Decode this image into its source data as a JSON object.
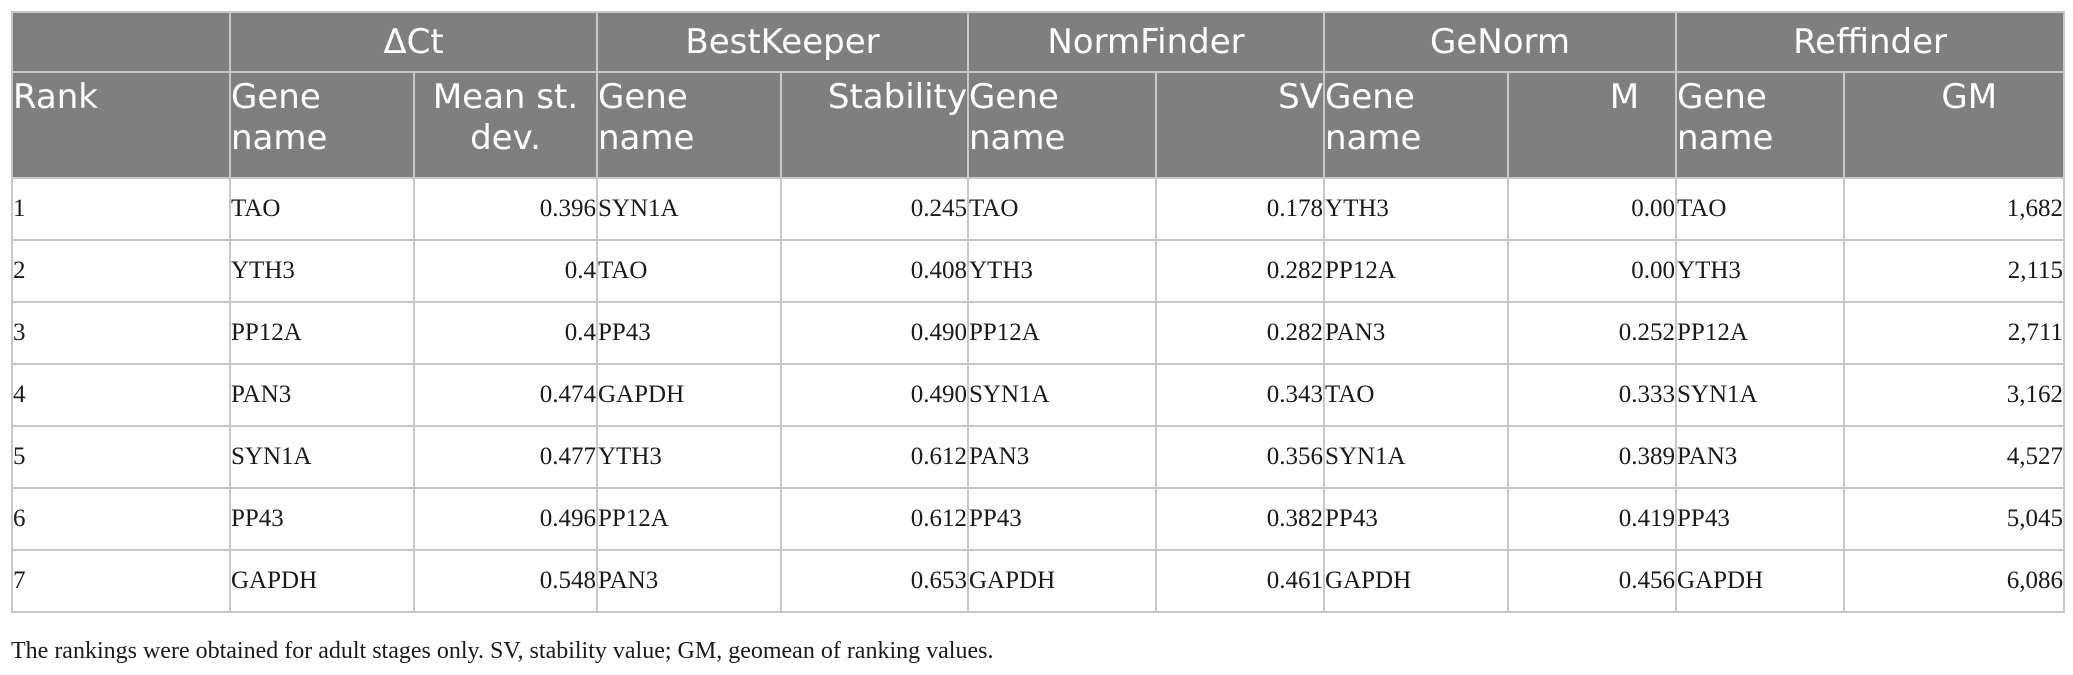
{
  "groups": [
    "ΔCt",
    "BestKeeper",
    "NormFinder",
    "GeNorm",
    "Reffinder"
  ],
  "subheaders": {
    "rank": "Rank",
    "gene": "Gene name",
    "dct_value": "Mean st. dev.",
    "bestkeeper_value": "Stability",
    "normfinder_value": "SV",
    "genorm_value": "M",
    "reffinder_value": "GM"
  },
  "rows": [
    {
      "rank": "1",
      "dct_gene": "TAO",
      "dct_val": "0.396",
      "bk_gene": "SYN1A",
      "bk_val": "0.245",
      "nf_gene": "TAO",
      "nf_val": "0.178",
      "gn_gene": "YTH3",
      "gn_val": "0.00",
      "rf_gene": "TAO",
      "rf_val": "1,682"
    },
    {
      "rank": "2",
      "dct_gene": "YTH3",
      "dct_val": "0.4",
      "bk_gene": "TAO",
      "bk_val": "0.408",
      "nf_gene": "YTH3",
      "nf_val": "0.282",
      "gn_gene": "PP12A",
      "gn_val": "0.00",
      "rf_gene": "YTH3",
      "rf_val": "2,115"
    },
    {
      "rank": "3",
      "dct_gene": "PP12A",
      "dct_val": "0.4",
      "bk_gene": "PP43",
      "bk_val": "0.490",
      "nf_gene": "PP12A",
      "nf_val": "0.282",
      "gn_gene": "PAN3",
      "gn_val": "0.252",
      "rf_gene": "PP12A",
      "rf_val": "2,711"
    },
    {
      "rank": "4",
      "dct_gene": "PAN3",
      "dct_val": "0.474",
      "bk_gene": "GAPDH",
      "bk_val": "0.490",
      "nf_gene": "SYN1A",
      "nf_val": "0.343",
      "gn_gene": "TAO",
      "gn_val": "0.333",
      "rf_gene": "SYN1A",
      "rf_val": "3,162"
    },
    {
      "rank": "5",
      "dct_gene": "SYN1A",
      "dct_val": "0.477",
      "bk_gene": "YTH3",
      "bk_val": "0.612",
      "nf_gene": "PAN3",
      "nf_val": "0.356",
      "gn_gene": "SYN1A",
      "gn_val": "0.389",
      "rf_gene": "PAN3",
      "rf_val": "4,527"
    },
    {
      "rank": "6",
      "dct_gene": "PP43",
      "dct_val": "0.496",
      "bk_gene": "PP12A",
      "bk_val": "0.612",
      "nf_gene": "PP43",
      "nf_val": "0.382",
      "gn_gene": "PP43",
      "gn_val": "0.419",
      "rf_gene": "PP43",
      "rf_val": "5,045"
    },
    {
      "rank": "7",
      "dct_gene": "GAPDH",
      "dct_val": "0.548",
      "bk_gene": "PAN3",
      "bk_val": "0.653",
      "nf_gene": "GAPDH",
      "nf_val": "0.461",
      "gn_gene": "GAPDH",
      "gn_val": "0.456",
      "rf_gene": "GAPDH",
      "rf_val": "6,086"
    }
  ],
  "footnote": "The rankings were obtained for adult stages only. SV, stability value; GM, geomean of ranking values."
}
